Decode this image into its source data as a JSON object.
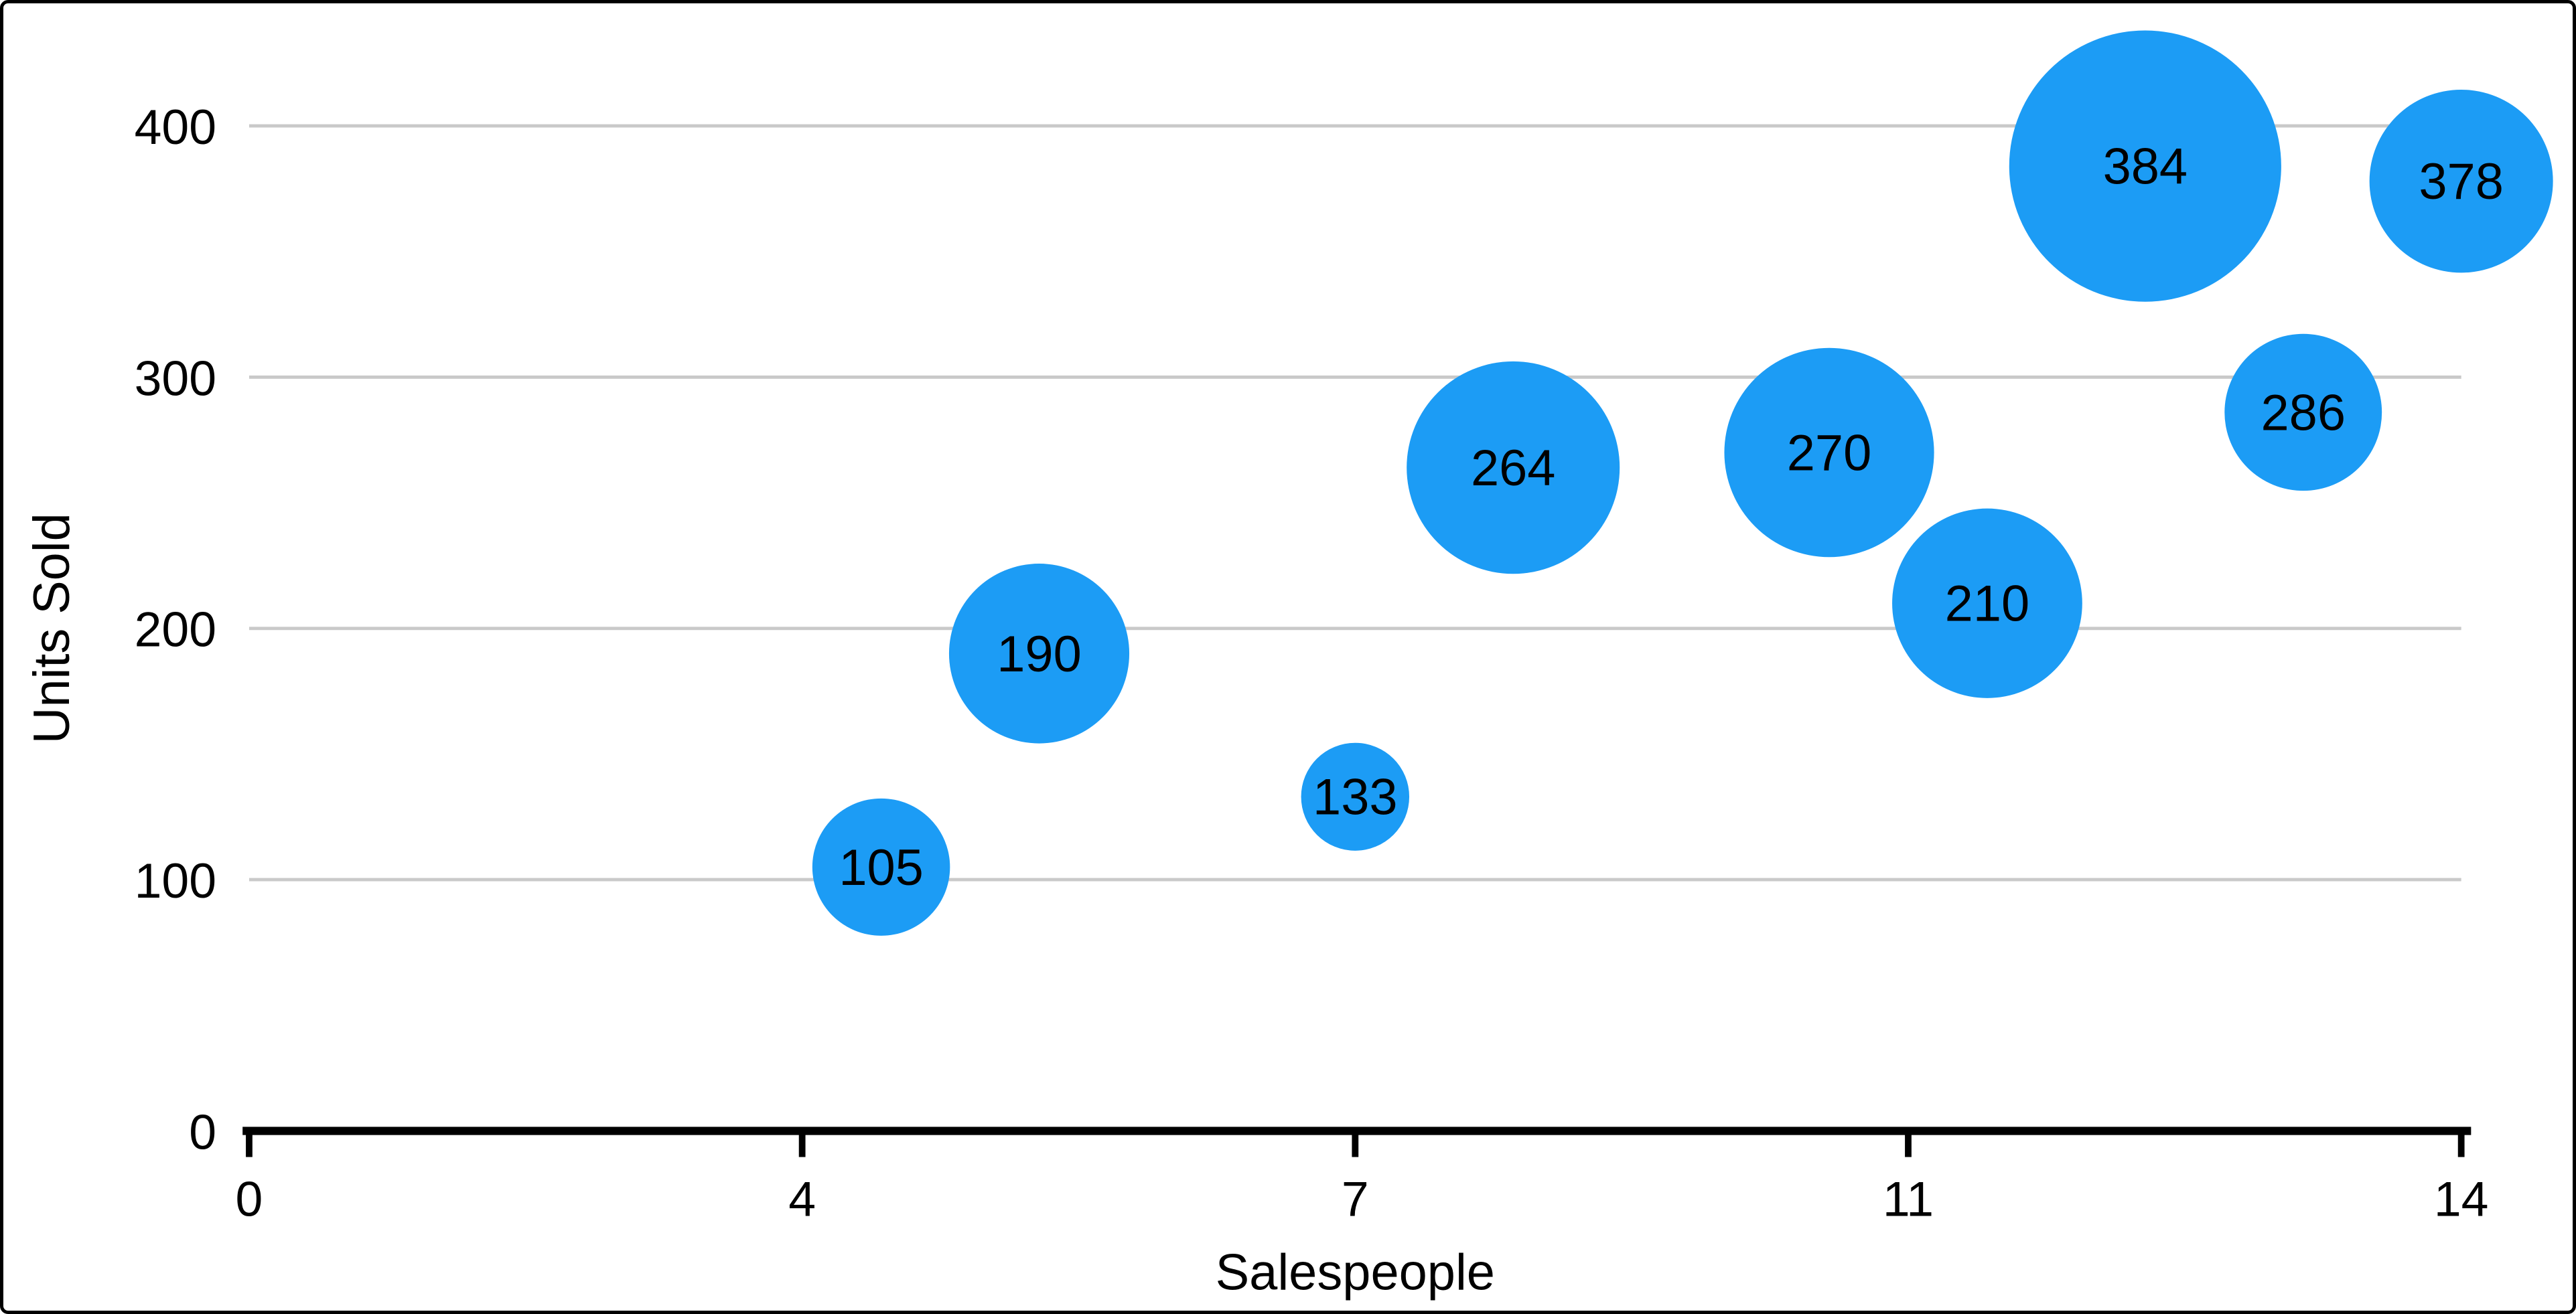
{
  "chart_data": {
    "type": "scatter",
    "subtype": "bubble",
    "title": "",
    "xlabel": "Salespeople",
    "ylabel": "Units Sold",
    "xlim": [
      0,
      14
    ],
    "ylim": [
      0,
      400
    ],
    "grid": "horizontal",
    "legend": "none",
    "bubble_color": "#1c9cf5",
    "grid_color": "#c9c9c9",
    "axis_color": "#000000",
    "x_ticks": [
      {
        "pos": 0,
        "label": "0"
      },
      {
        "pos": 3.5,
        "label": "4"
      },
      {
        "pos": 7,
        "label": "7"
      },
      {
        "pos": 10.5,
        "label": "11"
      },
      {
        "pos": 14,
        "label": "14"
      }
    ],
    "y_ticks": [
      {
        "pos": 0,
        "label": "0"
      },
      {
        "pos": 100,
        "label": "100"
      },
      {
        "pos": 200,
        "label": "200"
      },
      {
        "pos": 300,
        "label": "300"
      },
      {
        "pos": 400,
        "label": "400"
      }
    ],
    "points": [
      {
        "x": 4,
        "y": 105,
        "label": "105",
        "r": 42
      },
      {
        "x": 5,
        "y": 190,
        "label": "190",
        "r": 55
      },
      {
        "x": 7,
        "y": 133,
        "label": "133",
        "r": 33
      },
      {
        "x": 8,
        "y": 264,
        "label": "264",
        "r": 65
      },
      {
        "x": 10,
        "y": 270,
        "label": "270",
        "r": 64
      },
      {
        "x": 11,
        "y": 210,
        "label": "210",
        "r": 58
      },
      {
        "x": 12,
        "y": 384,
        "label": "384",
        "r": 83
      },
      {
        "x": 13,
        "y": 286,
        "label": "286",
        "r": 48
      },
      {
        "x": 14,
        "y": 378,
        "label": "378",
        "r": 56
      }
    ]
  }
}
